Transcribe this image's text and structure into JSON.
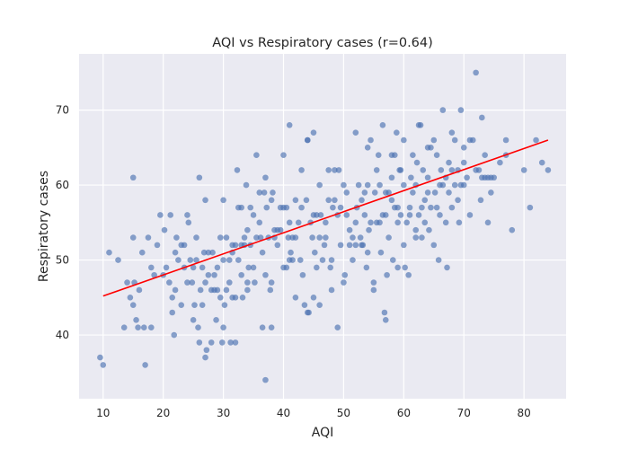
{
  "chart_data": {
    "type": "scatter",
    "title": "AQI vs Respiratory cases (r=0.64)",
    "xlabel": "AQI",
    "ylabel": "Respiratory cases",
    "xlim": [
      6,
      87
    ],
    "ylim": [
      31.5,
      77.5
    ],
    "xticks": [
      10,
      20,
      30,
      40,
      50,
      60,
      70,
      80
    ],
    "yticks": [
      40,
      50,
      60,
      70
    ],
    "grid": true,
    "colors": {
      "background": "#eaeaf2",
      "grid": "#ffffff",
      "points": "#4c72b0",
      "trend": "#ff0000"
    },
    "trendline": {
      "x": [
        10,
        84
      ],
      "y": [
        45.2,
        66
      ]
    },
    "points": [
      [
        9.5,
        37
      ],
      [
        10,
        36
      ],
      [
        11,
        51
      ],
      [
        12.5,
        50
      ],
      [
        13.5,
        41
      ],
      [
        14,
        47
      ],
      [
        14.5,
        45
      ],
      [
        15,
        53
      ],
      [
        15,
        61
      ],
      [
        15.2,
        47
      ],
      [
        15.5,
        42
      ],
      [
        15,
        44
      ],
      [
        15.8,
        41
      ],
      [
        16,
        46
      ],
      [
        16.5,
        51
      ],
      [
        16.8,
        41
      ],
      [
        17,
        36
      ],
      [
        17.5,
        53
      ],
      [
        18,
        41
      ],
      [
        18,
        49
      ],
      [
        18.5,
        48
      ],
      [
        19,
        52
      ],
      [
        19.5,
        56
      ],
      [
        20,
        48
      ],
      [
        20.2,
        54
      ],
      [
        20.5,
        49
      ],
      [
        21,
        47
      ],
      [
        21.2,
        56
      ],
      [
        21.5,
        45
      ],
      [
        21.5,
        43
      ],
      [
        21.8,
        40
      ],
      [
        22,
        46
      ],
      [
        22,
        51
      ],
      [
        22.2,
        53
      ],
      [
        22.5,
        50
      ],
      [
        23,
        44
      ],
      [
        23,
        52
      ],
      [
        23.5,
        52
      ],
      [
        23.5,
        49
      ],
      [
        24,
        47
      ],
      [
        24,
        56
      ],
      [
        24.2,
        55
      ],
      [
        24.5,
        50
      ],
      [
        24.8,
        47
      ],
      [
        25,
        42
      ],
      [
        25,
        49
      ],
      [
        25.2,
        44
      ],
      [
        25.5,
        53
      ],
      [
        25.5,
        50
      ],
      [
        25.8,
        41
      ],
      [
        26,
        61
      ],
      [
        26,
        39
      ],
      [
        26.2,
        46
      ],
      [
        26.5,
        44
      ],
      [
        26.5,
        49
      ],
      [
        26.8,
        51
      ],
      [
        27,
        37
      ],
      [
        27,
        47
      ],
      [
        27,
        58
      ],
      [
        27.2,
        38
      ],
      [
        27.5,
        48
      ],
      [
        27.5,
        51
      ],
      [
        28,
        46
      ],
      [
        28,
        39
      ],
      [
        28.2,
        51
      ],
      [
        28.5,
        46
      ],
      [
        28.5,
        48
      ],
      [
        28.8,
        42
      ],
      [
        29,
        49
      ],
      [
        29,
        46
      ],
      [
        29.5,
        45
      ],
      [
        29.5,
        53
      ],
      [
        29.8,
        39
      ],
      [
        30,
        41
      ],
      [
        30,
        50
      ],
      [
        30,
        58
      ],
      [
        30.2,
        44
      ],
      [
        30.5,
        46
      ],
      [
        30.5,
        53
      ],
      [
        31,
        47
      ],
      [
        31,
        50
      ],
      [
        31.2,
        39
      ],
      [
        31.5,
        51
      ],
      [
        31.5,
        52
      ],
      [
        31.5,
        45
      ],
      [
        32,
        52
      ],
      [
        32,
        45
      ],
      [
        32,
        39
      ],
      [
        32.3,
        62
      ],
      [
        32.5,
        57
      ],
      [
        32.5,
        50
      ],
      [
        33,
        52
      ],
      [
        33,
        57
      ],
      [
        33,
        48
      ],
      [
        33.2,
        45
      ],
      [
        33.5,
        52
      ],
      [
        33.5,
        53
      ],
      [
        33.8,
        60
      ],
      [
        34,
        54
      ],
      [
        34,
        47
      ],
      [
        34,
        46
      ],
      [
        34.2,
        49
      ],
      [
        34.5,
        57
      ],
      [
        34.5,
        52
      ],
      [
        35,
        56
      ],
      [
        35,
        49
      ],
      [
        35.2,
        47
      ],
      [
        35.5,
        64
      ],
      [
        35.5,
        53
      ],
      [
        36,
        59
      ],
      [
        36,
        55
      ],
      [
        36.2,
        53
      ],
      [
        36.5,
        51
      ],
      [
        36.5,
        41
      ],
      [
        36.8,
        59
      ],
      [
        37,
        61
      ],
      [
        37,
        34
      ],
      [
        37,
        48
      ],
      [
        37.2,
        57
      ],
      [
        37.5,
        53
      ],
      [
        37.8,
        46
      ],
      [
        38,
        58
      ],
      [
        38,
        41
      ],
      [
        38,
        47
      ],
      [
        38.2,
        59
      ],
      [
        38.5,
        53
      ],
      [
        38.5,
        54
      ],
      [
        39,
        54
      ],
      [
        39,
        52
      ],
      [
        39.5,
        57
      ],
      [
        39.5,
        54
      ],
      [
        40,
        57
      ],
      [
        40,
        64
      ],
      [
        40,
        49
      ],
      [
        40.5,
        49
      ],
      [
        40.5,
        57
      ],
      [
        40.8,
        53
      ],
      [
        41,
        68
      ],
      [
        41,
        55
      ],
      [
        41,
        50
      ],
      [
        41.2,
        51
      ],
      [
        41.5,
        50
      ],
      [
        41.5,
        53
      ],
      [
        42,
        58
      ],
      [
        42,
        53
      ],
      [
        42,
        45
      ],
      [
        42.5,
        55
      ],
      [
        42.8,
        50
      ],
      [
        43,
        57
      ],
      [
        43,
        62
      ],
      [
        43.2,
        48
      ],
      [
        43.5,
        44
      ],
      [
        43.8,
        58
      ],
      [
        44,
        66
      ],
      [
        44,
        66
      ],
      [
        44,
        43
      ],
      [
        44.2,
        43
      ],
      [
        44.5,
        55
      ],
      [
        44.8,
        53
      ],
      [
        45,
        67
      ],
      [
        45,
        56
      ],
      [
        45,
        45
      ],
      [
        45.2,
        51
      ],
      [
        45.5,
        56
      ],
      [
        45.5,
        49
      ],
      [
        46,
        60
      ],
      [
        46,
        44
      ],
      [
        46,
        53
      ],
      [
        46.2,
        56
      ],
      [
        46.5,
        50
      ],
      [
        46.8,
        52
      ],
      [
        47,
        53
      ],
      [
        47,
        55
      ],
      [
        47.5,
        58
      ],
      [
        47.5,
        62
      ],
      [
        47.8,
        49
      ],
      [
        48,
        46
      ],
      [
        48,
        50
      ],
      [
        48.2,
        57
      ],
      [
        48.5,
        62
      ],
      [
        48.5,
        58
      ],
      [
        49,
        41
      ],
      [
        49,
        56
      ],
      [
        49.2,
        62
      ],
      [
        49.5,
        57
      ],
      [
        49.5,
        52
      ],
      [
        50,
        60
      ],
      [
        50,
        47
      ],
      [
        50.2,
        48
      ],
      [
        50.5,
        56
      ],
      [
        50.5,
        59
      ],
      [
        51,
        54
      ],
      [
        51,
        52
      ],
      [
        51.5,
        50
      ],
      [
        51.5,
        53
      ],
      [
        52,
        67
      ],
      [
        52,
        55
      ],
      [
        52,
        52
      ],
      [
        52.2,
        57
      ],
      [
        52.5,
        60
      ],
      [
        52.8,
        53
      ],
      [
        53,
        52
      ],
      [
        53,
        58
      ],
      [
        53.2,
        52
      ],
      [
        53.5,
        59
      ],
      [
        53.5,
        56
      ],
      [
        53.8,
        49
      ],
      [
        54,
        60
      ],
      [
        54,
        65
      ],
      [
        54,
        51
      ],
      [
        54.2,
        54
      ],
      [
        54.5,
        66
      ],
      [
        54.5,
        55
      ],
      [
        55,
        46
      ],
      [
        55,
        47
      ],
      [
        55.2,
        59
      ],
      [
        55.5,
        62
      ],
      [
        55.5,
        55
      ],
      [
        55.8,
        64
      ],
      [
        56,
        60
      ],
      [
        56,
        55
      ],
      [
        56.2,
        51
      ],
      [
        56.5,
        56
      ],
      [
        56.5,
        68
      ],
      [
        56.8,
        43
      ],
      [
        57,
        42
      ],
      [
        57,
        59
      ],
      [
        57,
        56
      ],
      [
        57.2,
        48
      ],
      [
        57.5,
        59
      ],
      [
        57.5,
        53
      ],
      [
        58,
        64
      ],
      [
        58,
        58
      ],
      [
        58,
        61
      ],
      [
        58.2,
        50
      ],
      [
        58.5,
        57
      ],
      [
        58.5,
        64
      ],
      [
        58.8,
        67
      ],
      [
        59,
        49
      ],
      [
        59,
        55
      ],
      [
        59,
        57
      ],
      [
        59.3,
        62
      ],
      [
        59.5,
        62
      ],
      [
        59.5,
        56
      ],
      [
        60,
        60
      ],
      [
        60,
        66
      ],
      [
        60,
        52
      ],
      [
        60.2,
        49
      ],
      [
        60.5,
        55
      ],
      [
        60.8,
        48
      ],
      [
        61,
        57
      ],
      [
        61,
        56
      ],
      [
        61.2,
        61
      ],
      [
        61.5,
        64
      ],
      [
        61.5,
        59
      ],
      [
        62,
        54
      ],
      [
        62,
        60
      ],
      [
        62,
        53
      ],
      [
        62.2,
        63
      ],
      [
        62.5,
        68
      ],
      [
        62.5,
        56
      ],
      [
        62.8,
        68
      ],
      [
        63,
        53
      ],
      [
        63,
        57
      ],
      [
        63.2,
        62
      ],
      [
        63.5,
        58
      ],
      [
        63.5,
        55
      ],
      [
        64,
        61
      ],
      [
        64,
        65
      ],
      [
        64,
        59
      ],
      [
        64.2,
        54
      ],
      [
        64.5,
        65
      ],
      [
        64.5,
        57
      ],
      [
        65,
        52
      ],
      [
        65,
        66
      ],
      [
        65.2,
        59
      ],
      [
        65.5,
        64
      ],
      [
        65.5,
        57
      ],
      [
        65.8,
        50
      ],
      [
        66,
        60
      ],
      [
        66,
        56
      ],
      [
        66.2,
        62
      ],
      [
        66.5,
        70
      ],
      [
        66.5,
        60
      ],
      [
        67,
        61
      ],
      [
        67,
        55
      ],
      [
        67.2,
        49
      ],
      [
        67.5,
        59
      ],
      [
        67.5,
        63
      ],
      [
        68,
        62
      ],
      [
        68,
        67
      ],
      [
        68,
        57
      ],
      [
        68.5,
        66
      ],
      [
        68.5,
        60
      ],
      [
        69,
        58
      ],
      [
        69,
        62
      ],
      [
        69.2,
        55
      ],
      [
        69.5,
        60
      ],
      [
        69.5,
        70
      ],
      [
        70,
        63
      ],
      [
        70,
        65
      ],
      [
        70,
        60
      ],
      [
        70.5,
        61
      ],
      [
        71,
        66
      ],
      [
        71,
        56
      ],
      [
        71.5,
        66
      ],
      [
        72,
        62
      ],
      [
        72,
        75
      ],
      [
        72.5,
        62
      ],
      [
        72.8,
        58
      ],
      [
        73,
        69
      ],
      [
        73,
        61
      ],
      [
        73.5,
        64
      ],
      [
        73.5,
        61
      ],
      [
        74,
        55
      ],
      [
        74,
        61
      ],
      [
        74.5,
        59
      ],
      [
        74.5,
        61
      ],
      [
        75,
        61
      ],
      [
        76,
        63
      ],
      [
        77,
        66
      ],
      [
        77,
        64
      ],
      [
        78,
        54
      ],
      [
        80,
        62
      ],
      [
        81,
        57
      ],
      [
        82,
        66
      ],
      [
        83,
        63
      ],
      [
        84,
        62
      ]
    ]
  }
}
